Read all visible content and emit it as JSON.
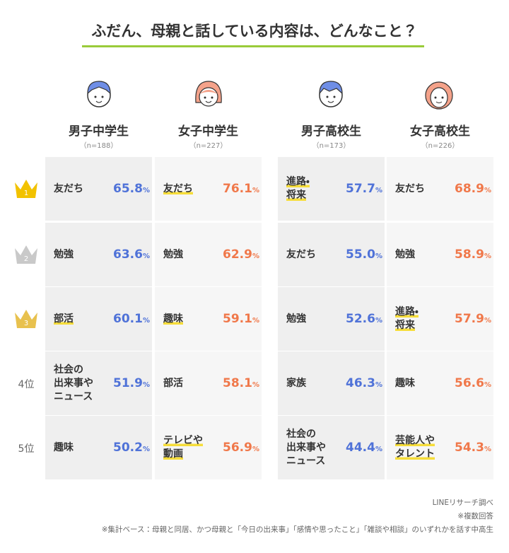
{
  "title": "ふだん、母親と話している内容は、どんなこと？",
  "percent_sign": "%",
  "ranks": [
    "1",
    "2",
    "3",
    "4位",
    "5位"
  ],
  "groups": [
    {
      "name": "男子中学生",
      "n": "（n=188）",
      "color": "#4f72d8",
      "items": [
        {
          "label": "友だち",
          "value": "65.8",
          "highlight": false
        },
        {
          "label": "勉強",
          "value": "63.6",
          "highlight": false
        },
        {
          "label": "部活",
          "value": "60.1",
          "highlight": true
        },
        {
          "label": "社会の\n出来事や\nニュース",
          "value": "51.9",
          "highlight": false
        },
        {
          "label": "趣味",
          "value": "50.2",
          "highlight": false
        }
      ]
    },
    {
      "name": "女子中学生",
      "n": "（n=227）",
      "color": "#f0784a",
      "items": [
        {
          "label": "友だち",
          "value": "76.1",
          "highlight": true
        },
        {
          "label": "勉強",
          "value": "62.9",
          "highlight": false
        },
        {
          "label": "趣味",
          "value": "59.1",
          "highlight": true
        },
        {
          "label": "部活",
          "value": "58.1",
          "highlight": false
        },
        {
          "label": "テレビや\n動画",
          "value": "56.9",
          "highlight": true
        }
      ]
    },
    {
      "name": "男子高校生",
      "n": "（n=173）",
      "color": "#4f72d8",
      "items": [
        {
          "label": "進路・\n将来",
          "value": "57.7",
          "highlight": true
        },
        {
          "label": "友だち",
          "value": "55.0",
          "highlight": false
        },
        {
          "label": "勉強",
          "value": "52.6",
          "highlight": false
        },
        {
          "label": "家族",
          "value": "46.3",
          "highlight": false
        },
        {
          "label": "社会の\n出来事や\nニュース",
          "value": "44.4",
          "highlight": false
        }
      ]
    },
    {
      "name": "女子高校生",
      "n": "（n=226）",
      "color": "#f0784a",
      "items": [
        {
          "label": "友だち",
          "value": "68.9",
          "highlight": false
        },
        {
          "label": "勉強",
          "value": "58.9",
          "highlight": false
        },
        {
          "label": "進路・\n将来",
          "value": "57.9",
          "highlight": true
        },
        {
          "label": "趣味",
          "value": "56.6",
          "highlight": false
        },
        {
          "label": "芸能人や\nタレント",
          "value": "54.3",
          "highlight": true
        }
      ]
    }
  ],
  "footer": [
    "LINEリサーチ調べ",
    "※複数回答",
    "※集計ベース：母親と同居、かつ母親と「今日の出来事」「感情や思ったこと」「雑談や相談」のいずれかを話す中高生"
  ]
}
